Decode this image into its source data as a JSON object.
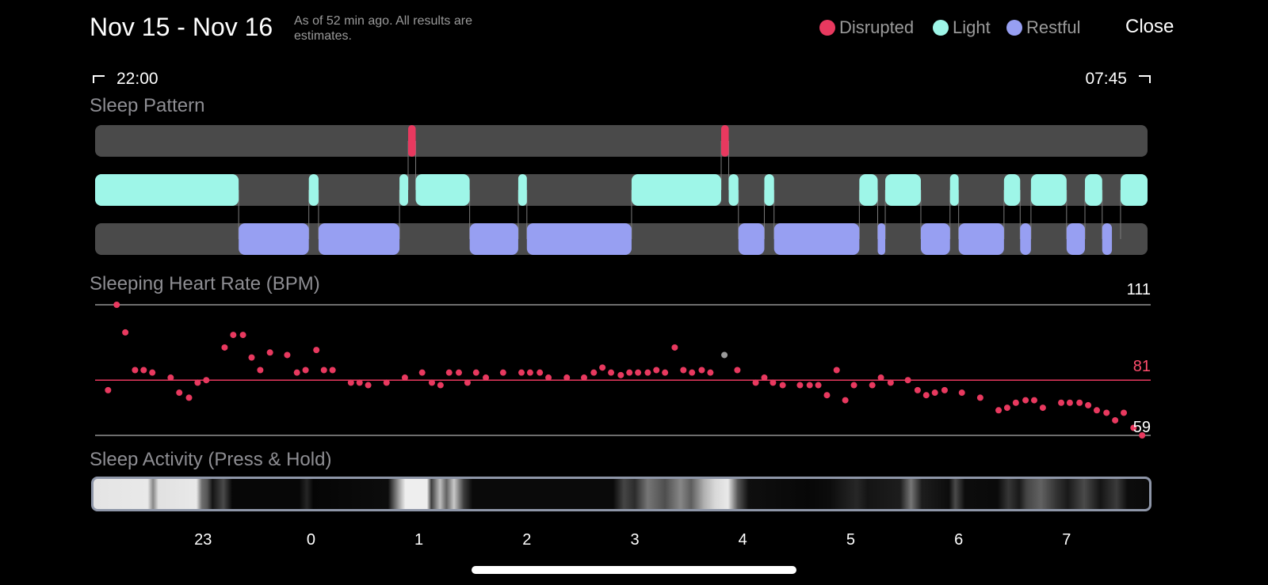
{
  "header": {
    "date_range": "Nov 15 - Nov 16",
    "as_of": "As of 52 min ago. All results are estimates.",
    "close_label": "Close"
  },
  "legend": [
    {
      "label": "Disrupted",
      "color": "#e8395f"
    },
    {
      "label": "Light",
      "color": "#9ef6e8"
    },
    {
      "label": "Restful",
      "color": "#979ff2"
    }
  ],
  "time_range": {
    "start": "22:00",
    "end": "07:45"
  },
  "sleep_pattern": {
    "title": "Sleep Pattern",
    "start_hour": 22.0,
    "end_hour": 31.75,
    "segments": {
      "disrupted": [
        [
          24.9,
          24.97
        ],
        [
          27.8,
          27.87
        ]
      ],
      "light": [
        [
          22.0,
          23.33
        ],
        [
          23.98,
          24.07
        ],
        [
          24.82,
          24.9
        ],
        [
          24.97,
          25.47
        ],
        [
          25.92,
          26.0
        ],
        [
          26.97,
          27.8
        ],
        [
          27.87,
          27.96
        ],
        [
          28.2,
          28.29
        ],
        [
          29.08,
          29.25
        ],
        [
          29.32,
          29.65
        ],
        [
          29.92,
          30.0
        ],
        [
          30.42,
          30.57
        ],
        [
          30.67,
          31.0
        ],
        [
          31.17,
          31.33
        ],
        [
          31.5,
          31.75
        ]
      ],
      "restful": [
        [
          23.33,
          23.98
        ],
        [
          24.07,
          24.82
        ],
        [
          25.47,
          25.92
        ],
        [
          26.0,
          26.97
        ],
        [
          27.96,
          28.2
        ],
        [
          28.29,
          29.08
        ],
        [
          29.25,
          29.32
        ],
        [
          29.65,
          29.92
        ],
        [
          30.0,
          30.42
        ],
        [
          30.57,
          30.67
        ],
        [
          31.0,
          31.17
        ],
        [
          31.33,
          31.42
        ]
      ]
    },
    "colors": {
      "track": "#4a4a4a",
      "disrupted": "#e8395f",
      "light": "#9ef6e8",
      "restful": "#979ff2"
    }
  },
  "heart_rate": {
    "title": "Sleeping Heart Rate (BPM)",
    "max_label": "111",
    "avg_label": "81",
    "min_label": "59",
    "ymin": 59,
    "ymax": 111,
    "avg": 81,
    "point_color": "#e8395f",
    "highlight_color": "#9a9a9a",
    "points": [
      {
        "h": 22.12,
        "v": 77
      },
      {
        "h": 22.2,
        "v": 111
      },
      {
        "h": 22.28,
        "v": 100
      },
      {
        "h": 22.37,
        "v": 85
      },
      {
        "h": 22.45,
        "v": 85
      },
      {
        "h": 22.53,
        "v": 84
      },
      {
        "h": 22.7,
        "v": 82
      },
      {
        "h": 22.78,
        "v": 76
      },
      {
        "h": 22.87,
        "v": 74
      },
      {
        "h": 22.95,
        "v": 80
      },
      {
        "h": 23.03,
        "v": 81
      },
      {
        "h": 23.2,
        "v": 94
      },
      {
        "h": 23.28,
        "v": 99
      },
      {
        "h": 23.37,
        "v": 99
      },
      {
        "h": 23.45,
        "v": 90
      },
      {
        "h": 23.53,
        "v": 85
      },
      {
        "h": 23.62,
        "v": 92
      },
      {
        "h": 23.78,
        "v": 91
      },
      {
        "h": 23.87,
        "v": 84
      },
      {
        "h": 23.95,
        "v": 85
      },
      {
        "h": 24.05,
        "v": 93
      },
      {
        "h": 24.12,
        "v": 85
      },
      {
        "h": 24.2,
        "v": 85
      },
      {
        "h": 24.37,
        "v": 80
      },
      {
        "h": 24.45,
        "v": 80
      },
      {
        "h": 24.53,
        "v": 79
      },
      {
        "h": 24.7,
        "v": 80
      },
      {
        "h": 24.87,
        "v": 82
      },
      {
        "h": 25.03,
        "v": 84
      },
      {
        "h": 25.12,
        "v": 80
      },
      {
        "h": 25.2,
        "v": 79
      },
      {
        "h": 25.28,
        "v": 84
      },
      {
        "h": 25.37,
        "v": 84
      },
      {
        "h": 25.45,
        "v": 80
      },
      {
        "h": 25.53,
        "v": 84
      },
      {
        "h": 25.62,
        "v": 82
      },
      {
        "h": 25.78,
        "v": 84
      },
      {
        "h": 25.95,
        "v": 84
      },
      {
        "h": 26.03,
        "v": 84
      },
      {
        "h": 26.12,
        "v": 84
      },
      {
        "h": 26.2,
        "v": 82
      },
      {
        "h": 26.37,
        "v": 82
      },
      {
        "h": 26.53,
        "v": 82
      },
      {
        "h": 26.62,
        "v": 84
      },
      {
        "h": 26.7,
        "v": 86
      },
      {
        "h": 26.78,
        "v": 84
      },
      {
        "h": 26.87,
        "v": 83
      },
      {
        "h": 26.95,
        "v": 84
      },
      {
        "h": 27.03,
        "v": 84
      },
      {
        "h": 27.12,
        "v": 84
      },
      {
        "h": 27.2,
        "v": 85
      },
      {
        "h": 27.28,
        "v": 84
      },
      {
        "h": 27.37,
        "v": 94
      },
      {
        "h": 27.45,
        "v": 85
      },
      {
        "h": 27.53,
        "v": 84
      },
      {
        "h": 27.62,
        "v": 85
      },
      {
        "h": 27.7,
        "v": 84
      },
      {
        "h": 27.83,
        "v": 91,
        "highlight": true
      },
      {
        "h": 27.95,
        "v": 85
      },
      {
        "h": 28.12,
        "v": 80
      },
      {
        "h": 28.2,
        "v": 82
      },
      {
        "h": 28.28,
        "v": 80
      },
      {
        "h": 28.37,
        "v": 79
      },
      {
        "h": 28.53,
        "v": 79
      },
      {
        "h": 28.62,
        "v": 79
      },
      {
        "h": 28.7,
        "v": 79
      },
      {
        "h": 28.78,
        "v": 75
      },
      {
        "h": 28.87,
        "v": 85
      },
      {
        "h": 28.95,
        "v": 73
      },
      {
        "h": 29.03,
        "v": 79
      },
      {
        "h": 29.2,
        "v": 79
      },
      {
        "h": 29.28,
        "v": 82
      },
      {
        "h": 29.37,
        "v": 80
      },
      {
        "h": 29.53,
        "v": 81
      },
      {
        "h": 29.62,
        "v": 77
      },
      {
        "h": 29.7,
        "v": 75
      },
      {
        "h": 29.78,
        "v": 76
      },
      {
        "h": 29.87,
        "v": 77
      },
      {
        "h": 30.03,
        "v": 76
      },
      {
        "h": 30.2,
        "v": 74
      },
      {
        "h": 30.37,
        "v": 69
      },
      {
        "h": 30.45,
        "v": 70
      },
      {
        "h": 30.53,
        "v": 72
      },
      {
        "h": 30.62,
        "v": 73
      },
      {
        "h": 30.7,
        "v": 73
      },
      {
        "h": 30.78,
        "v": 70
      },
      {
        "h": 30.95,
        "v": 72
      },
      {
        "h": 31.03,
        "v": 72
      },
      {
        "h": 31.12,
        "v": 72
      },
      {
        "h": 31.2,
        "v": 71
      },
      {
        "h": 31.28,
        "v": 69
      },
      {
        "h": 31.37,
        "v": 68
      },
      {
        "h": 31.45,
        "v": 65
      },
      {
        "h": 31.53,
        "v": 68
      },
      {
        "h": 31.62,
        "v": 62
      },
      {
        "h": 31.7,
        "v": 59
      }
    ]
  },
  "sleep_activity": {
    "title": "Sleep Activity (Press & Hold)",
    "ticks": [
      "23",
      "0",
      "1",
      "2",
      "3",
      "4",
      "5",
      "6",
      "7"
    ],
    "levels": [
      {
        "h": 22.0,
        "v": 0.93
      },
      {
        "h": 22.5,
        "v": 0.95
      },
      {
        "h": 22.55,
        "v": 0.55
      },
      {
        "h": 22.6,
        "v": 0.92
      },
      {
        "h": 22.95,
        "v": 0.95
      },
      {
        "h": 23.0,
        "v": 0.45
      },
      {
        "h": 23.05,
        "v": 0.35
      },
      {
        "h": 23.1,
        "v": 0.08
      },
      {
        "h": 23.2,
        "v": 0.3
      },
      {
        "h": 23.28,
        "v": 0.03
      },
      {
        "h": 23.9,
        "v": 0.03
      },
      {
        "h": 23.97,
        "v": 0.15
      },
      {
        "h": 24.03,
        "v": 0.02
      },
      {
        "h": 24.72,
        "v": 0.05
      },
      {
        "h": 24.82,
        "v": 0.65
      },
      {
        "h": 24.88,
        "v": 0.97
      },
      {
        "h": 25.08,
        "v": 0.97
      },
      {
        "h": 25.12,
        "v": 0.25
      },
      {
        "h": 25.2,
        "v": 0.78
      },
      {
        "h": 25.26,
        "v": 0.4
      },
      {
        "h": 25.33,
        "v": 0.82
      },
      {
        "h": 25.42,
        "v": 0.25
      },
      {
        "h": 25.5,
        "v": 0.04
      },
      {
        "h": 26.8,
        "v": 0.04
      },
      {
        "h": 26.9,
        "v": 0.28
      },
      {
        "h": 27.0,
        "v": 0.18
      },
      {
        "h": 27.12,
        "v": 0.48
      },
      {
        "h": 27.28,
        "v": 0.32
      },
      {
        "h": 27.42,
        "v": 0.55
      },
      {
        "h": 27.52,
        "v": 0.38
      },
      {
        "h": 27.64,
        "v": 0.72
      },
      {
        "h": 27.74,
        "v": 0.88
      },
      {
        "h": 27.86,
        "v": 0.95
      },
      {
        "h": 27.95,
        "v": 0.35
      },
      {
        "h": 28.05,
        "v": 0.06
      },
      {
        "h": 28.6,
        "v": 0.03
      },
      {
        "h": 28.8,
        "v": 0.05
      },
      {
        "h": 29.05,
        "v": 0.16
      },
      {
        "h": 29.15,
        "v": 0.08
      },
      {
        "h": 29.45,
        "v": 0.12
      },
      {
        "h": 29.55,
        "v": 0.48
      },
      {
        "h": 29.65,
        "v": 0.12
      },
      {
        "h": 29.9,
        "v": 0.05
      },
      {
        "h": 29.96,
        "v": 0.3
      },
      {
        "h": 30.05,
        "v": 0.05
      },
      {
        "h": 30.35,
        "v": 0.04
      },
      {
        "h": 30.45,
        "v": 0.22
      },
      {
        "h": 30.55,
        "v": 0.1
      },
      {
        "h": 30.62,
        "v": 0.28
      },
      {
        "h": 30.75,
        "v": 0.4
      },
      {
        "h": 30.9,
        "v": 0.2
      },
      {
        "h": 31.0,
        "v": 0.1
      },
      {
        "h": 31.15,
        "v": 0.3
      },
      {
        "h": 31.3,
        "v": 0.08
      },
      {
        "h": 31.45,
        "v": 0.24
      },
      {
        "h": 31.55,
        "v": 0.05
      },
      {
        "h": 31.75,
        "v": 0.04
      }
    ]
  }
}
